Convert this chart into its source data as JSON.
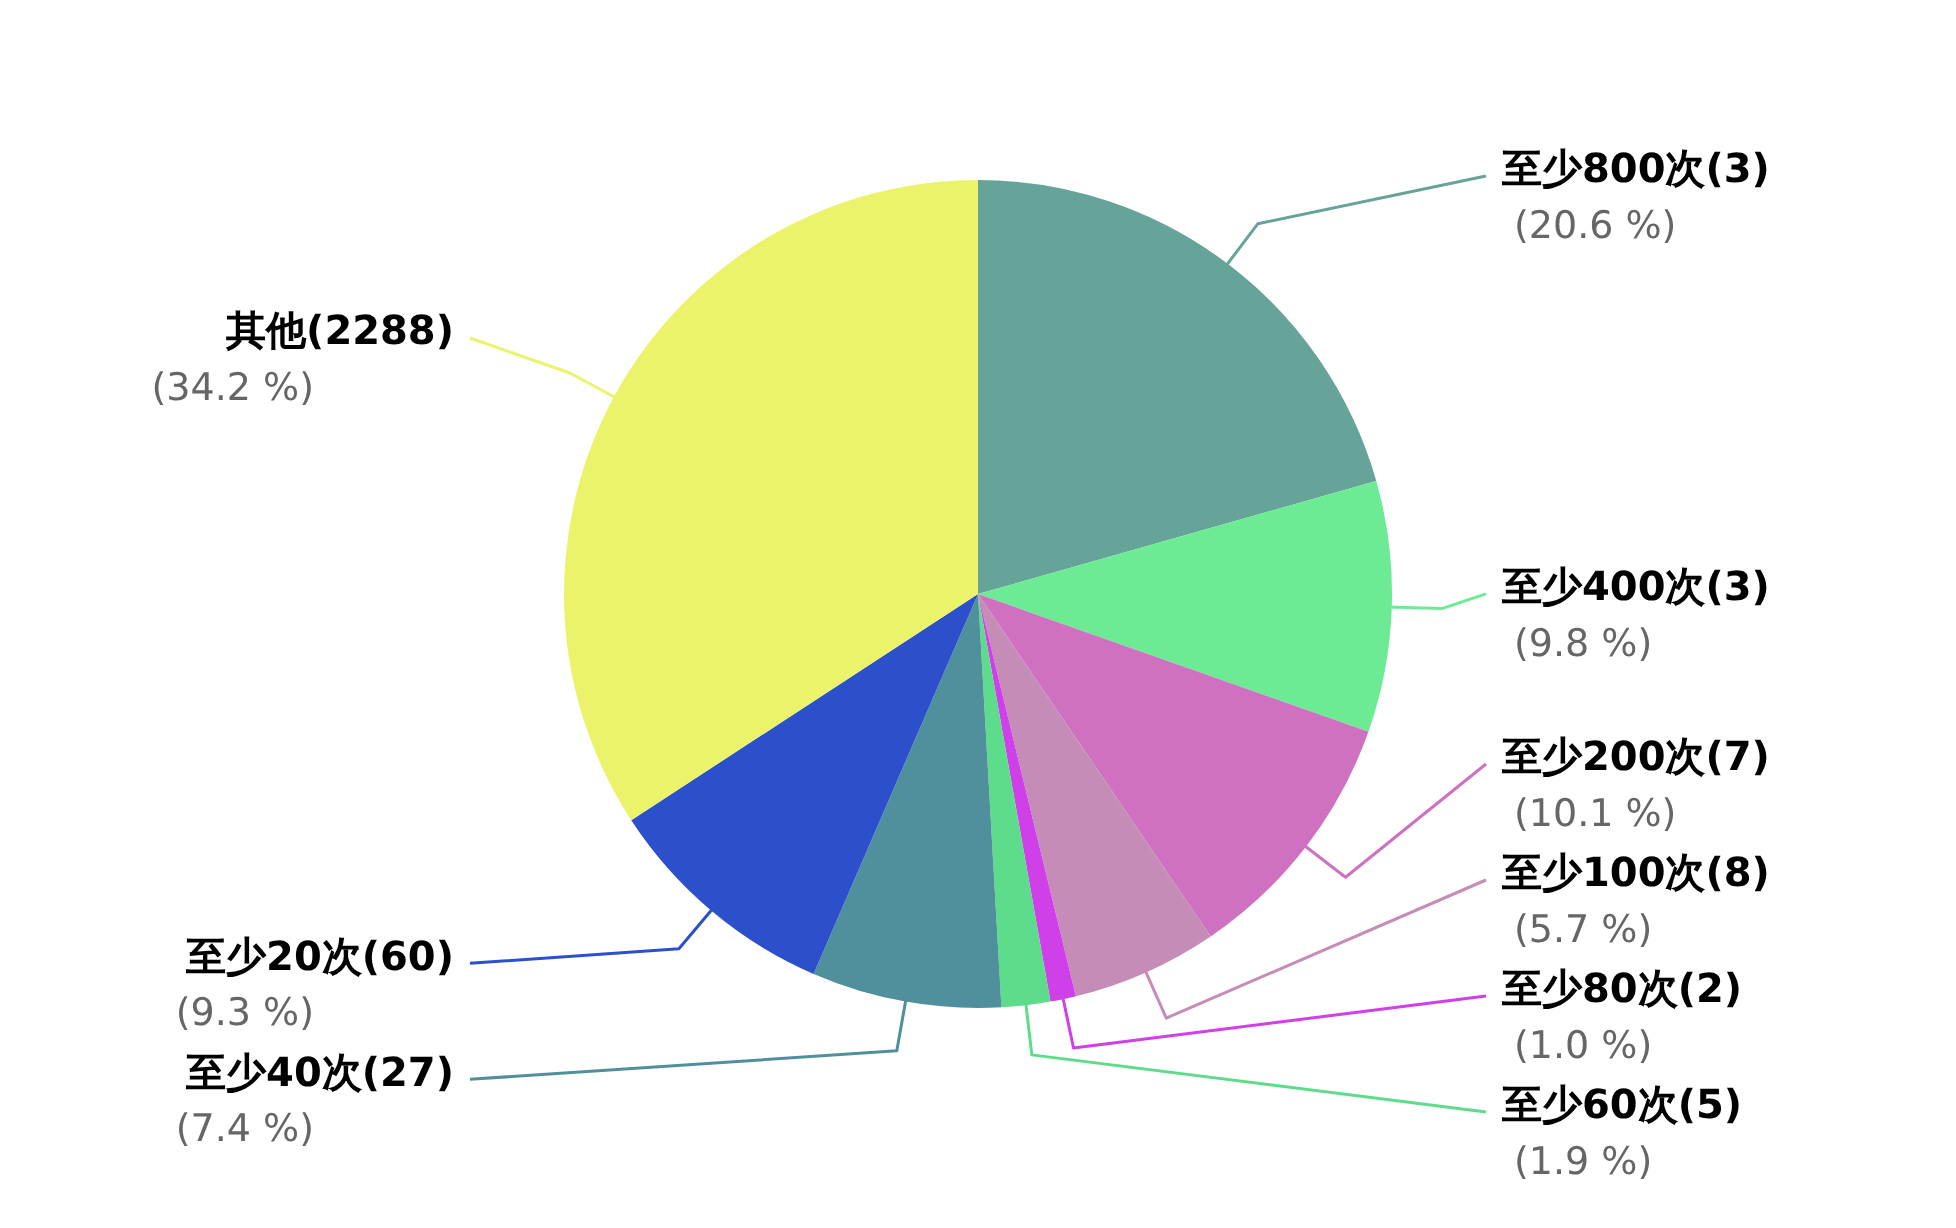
{
  "chart_data": {
    "type": "pie",
    "categories": [
      "至少800次(3)",
      "至少400次(3)",
      "至少200次(7)",
      "至少100次(8)",
      "至少80次(2)",
      "至少60次(5)",
      "至少40次(27)",
      "至少20次(60)",
      "其他(2288)"
    ],
    "values": [
      20.6,
      9.8,
      10.1,
      5.7,
      1.0,
      1.9,
      7.4,
      9.3,
      34.2
    ],
    "value_labels": [
      "(20.6 %)",
      "(9.8 %)",
      "(10.1 %)",
      "(5.7 %)",
      "(1.0 %)",
      "(1.9 %)",
      "(7.4 %)",
      "(9.3 %)",
      "(34.2 %)"
    ],
    "colors": [
      "#66a398",
      "#6deb94",
      "#d070c0",
      "#c68cb8",
      "#d040e8",
      "#5ddc8c",
      "#50909c",
      "#2c50cc",
      "#eaf36a"
    ],
    "legend": false
  }
}
